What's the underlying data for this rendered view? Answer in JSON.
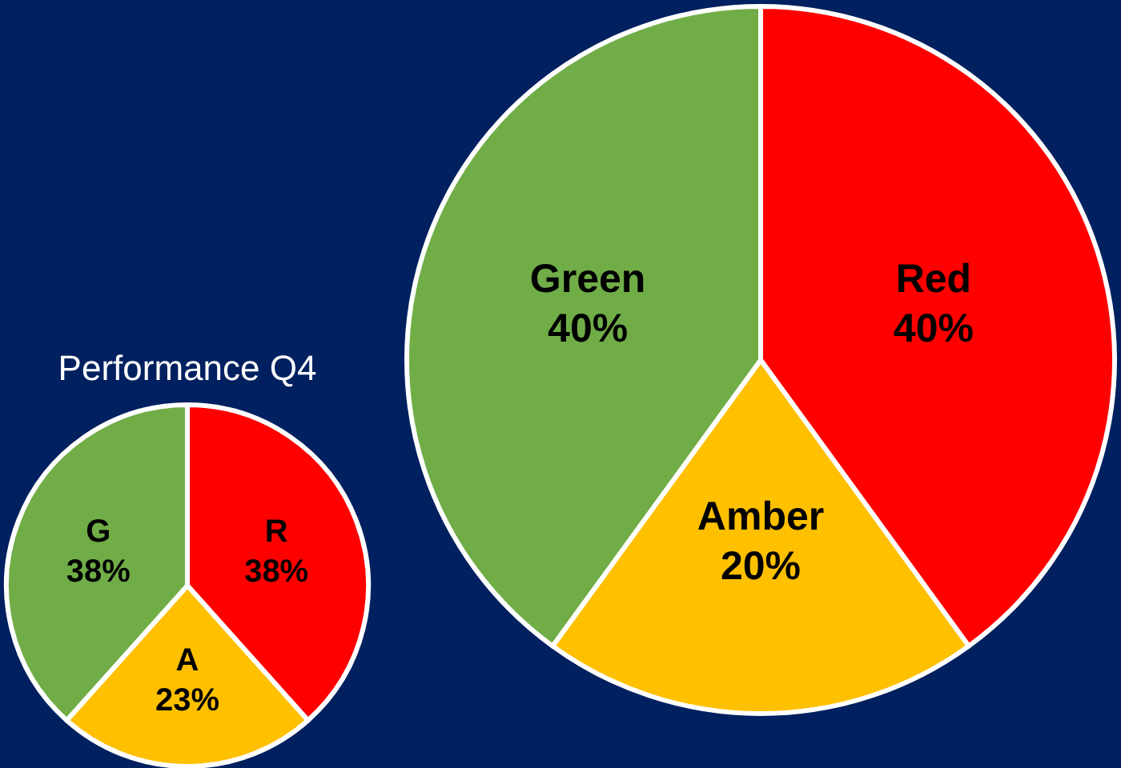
{
  "chart_data": [
    {
      "type": "pie",
      "title": "Performance Q4",
      "categories": [
        "R",
        "A",
        "G"
      ],
      "values": [
        38,
        23,
        38
      ],
      "value_labels": [
        "38%",
        "23%",
        "38%"
      ],
      "colors": [
        "#ff0000",
        "#ffc000",
        "#70ad47"
      ]
    },
    {
      "type": "pie",
      "categories": [
        "Red",
        "Amber",
        "Green"
      ],
      "values": [
        40,
        20,
        40
      ],
      "value_labels": [
        "40%",
        "20%",
        "40%"
      ],
      "colors": [
        "#ff0000",
        "#ffc000",
        "#70ad47"
      ]
    }
  ]
}
